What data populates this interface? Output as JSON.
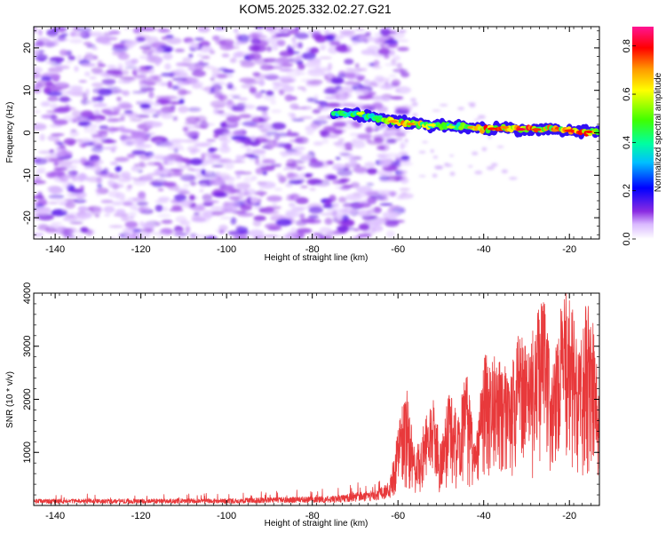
{
  "chart_data": [
    {
      "type": "heatmap",
      "title": "KOM5.2025.332.02.27.G21",
      "xlabel": "Height of straight line (km)",
      "ylabel": "Frequency (Hz)",
      "xlim": [
        -145,
        -13
      ],
      "ylim": [
        -25,
        25
      ],
      "xticks": [
        -140,
        -120,
        -100,
        -80,
        -60,
        -40,
        -20
      ],
      "yticks": [
        -20,
        -10,
        0,
        10,
        20
      ],
      "colorbar": {
        "label": "Normalized spectral amplitude",
        "range": [
          0,
          0.88
        ],
        "ticks": [
          0.0,
          0.2,
          0.4,
          0.6,
          0.8
        ],
        "colors": [
          "#ffffff",
          "#6a00ff",
          "#0000ff",
          "#00bfff",
          "#00ff80",
          "#40ff00",
          "#ffff00",
          "#ff8000",
          "#ff0000",
          "#ff0080"
        ]
      },
      "signal_track": {
        "x": [
          -75,
          -70,
          -65,
          -60,
          -55,
          -50,
          -45,
          -40,
          -35,
          -30,
          -25,
          -20,
          -15,
          -13
        ],
        "freq": [
          4.5,
          4.5,
          3.5,
          2.5,
          2.0,
          1.5,
          1.5,
          0.8,
          1.0,
          0.8,
          1.0,
          0.5,
          0.0,
          0.5
        ],
        "amplitude": [
          0.45,
          0.55,
          0.5,
          0.75,
          0.7,
          0.6,
          0.55,
          0.85,
          0.8,
          0.85,
          0.75,
          0.85,
          0.8,
          0.6
        ]
      },
      "noise_region": {
        "x_range": [
          -145,
          -60
        ],
        "amplitude_range": [
          0.0,
          0.12
        ]
      }
    },
    {
      "type": "line",
      "xlabel": "Height of straight line (km)",
      "ylabel": "SNR (10 * v/v)",
      "xlim": [
        -145,
        -13
      ],
      "ylim": [
        0,
        4000
      ],
      "xticks": [
        -140,
        -120,
        -100,
        -80,
        -60,
        -40,
        -20
      ],
      "yticks": [
        1000,
        2000,
        3000,
        4000
      ],
      "line_color": "#e8393b",
      "series": [
        {
          "name": "SNR",
          "x": [
            -145,
            -100,
            -75,
            -65,
            -62,
            -60,
            -58,
            -56,
            -54,
            -52,
            -50,
            -48,
            -46,
            -44,
            -42,
            -40,
            -38,
            -36,
            -34,
            -32,
            -30,
            -28,
            -26,
            -24,
            -22,
            -20,
            -18,
            -16,
            -14,
            -13
          ],
          "y": [
            120,
            130,
            180,
            300,
            450,
            1300,
            2100,
            900,
            1400,
            1900,
            1100,
            2000,
            1500,
            2400,
            1000,
            2600,
            2500,
            2800,
            2000,
            3200,
            2700,
            3200,
            3600,
            2300,
            3400,
            3900,
            2600,
            3500,
            3100,
            1600
          ]
        }
      ]
    }
  ]
}
